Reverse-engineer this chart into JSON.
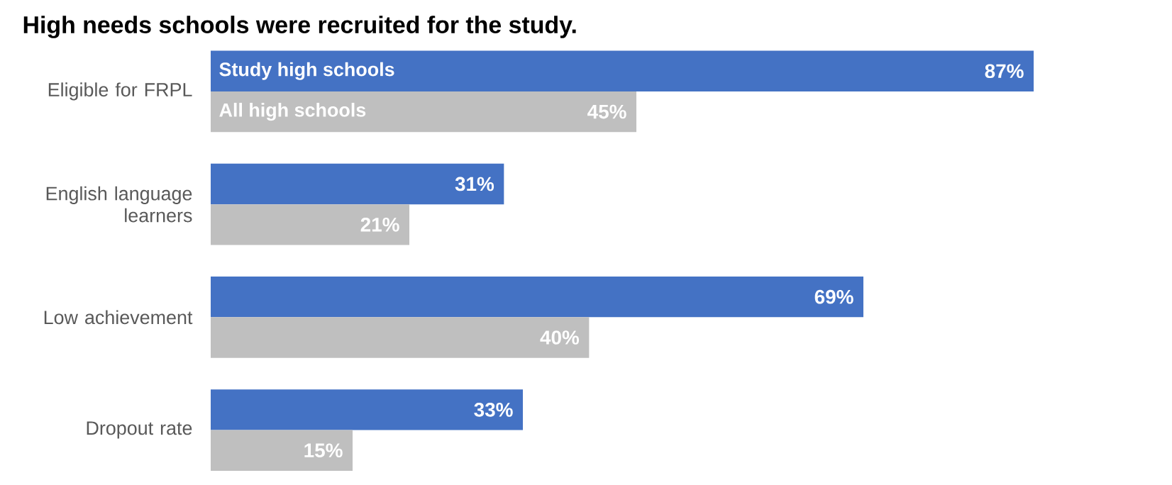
{
  "chart_data": {
    "type": "bar",
    "orientation": "horizontal",
    "title": "High needs schools were recruited for the study.",
    "categories": [
      "Eligible for FRPL",
      "English language learners",
      "Low achievement",
      "Dropout rate"
    ],
    "series": [
      {
        "name": "Study high schools",
        "color": "#4472c4",
        "values": [
          87,
          31,
          69,
          33
        ],
        "value_labels": [
          "87%",
          "31%",
          "69%",
          "33%"
        ]
      },
      {
        "name": "All high schools",
        "color": "#bfbfbf",
        "values": [
          45,
          21,
          40,
          15
        ],
        "value_labels": [
          "45%",
          "21%",
          "40%",
          "15%"
        ]
      }
    ]
  }
}
